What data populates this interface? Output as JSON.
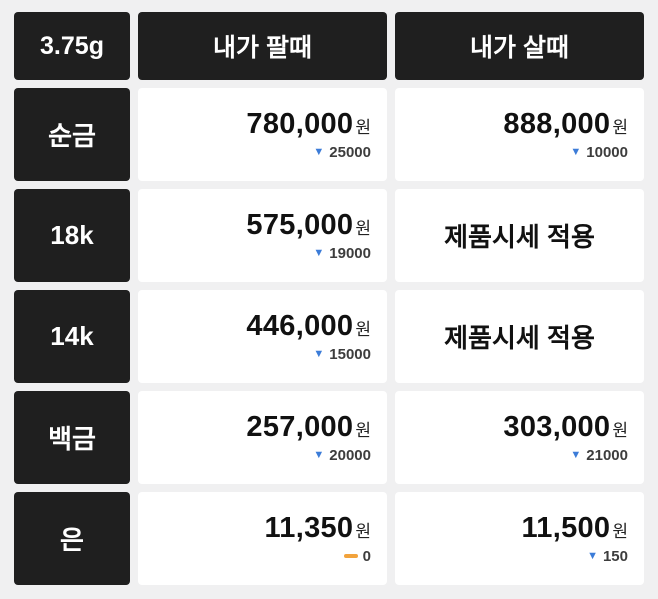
{
  "header": {
    "weight": "3.75g",
    "sell_label": "내가 팔때",
    "buy_label": "내가 살때"
  },
  "unit": "원",
  "icons": {
    "down": "▼",
    "flat": "▬"
  },
  "rows": [
    {
      "label": "순금",
      "sell": {
        "price": "780,000",
        "change": "25000",
        "direction": "down"
      },
      "buy": {
        "price": "888,000",
        "change": "10000",
        "direction": "down"
      }
    },
    {
      "label": "18k",
      "sell": {
        "price": "575,000",
        "change": "19000",
        "direction": "down"
      },
      "buy": {
        "text": "제품시세 적용"
      }
    },
    {
      "label": "14k",
      "sell": {
        "price": "446,000",
        "change": "15000",
        "direction": "down"
      },
      "buy": {
        "text": "제품시세 적용"
      }
    },
    {
      "label": "백금",
      "sell": {
        "price": "257,000",
        "change": "20000",
        "direction": "down"
      },
      "buy": {
        "price": "303,000",
        "change": "21000",
        "direction": "down"
      }
    },
    {
      "label": "은",
      "sell": {
        "price": "11,350",
        "change": "0",
        "direction": "flat"
      },
      "buy": {
        "price": "11,500",
        "change": "150",
        "direction": "down"
      }
    }
  ],
  "colors": {
    "bg": "#f0f0f1",
    "dark": "#1f1f1f",
    "cell": "#ffffff",
    "blue": "#3c7cd8",
    "orange": "#f2a33c",
    "price_text": "#111111",
    "change_text": "#3d3d3d"
  },
  "chart_data": {
    "type": "table",
    "unit_weight": "3.75g",
    "currency": "원",
    "columns": [
      "3.75g",
      "내가 팔때",
      "내가 살때"
    ],
    "rows": [
      {
        "item": "순금",
        "sell": 780000,
        "sell_change": -25000,
        "buy": 888000,
        "buy_change": -10000
      },
      {
        "item": "18k",
        "sell": 575000,
        "sell_change": -19000,
        "buy": "제품시세 적용"
      },
      {
        "item": "14k",
        "sell": 446000,
        "sell_change": -15000,
        "buy": "제품시세 적용"
      },
      {
        "item": "백금",
        "sell": 257000,
        "sell_change": -20000,
        "buy": 303000,
        "buy_change": -21000
      },
      {
        "item": "은",
        "sell": 11350,
        "sell_change": 0,
        "buy": 11500,
        "buy_change": -150
      }
    ]
  }
}
